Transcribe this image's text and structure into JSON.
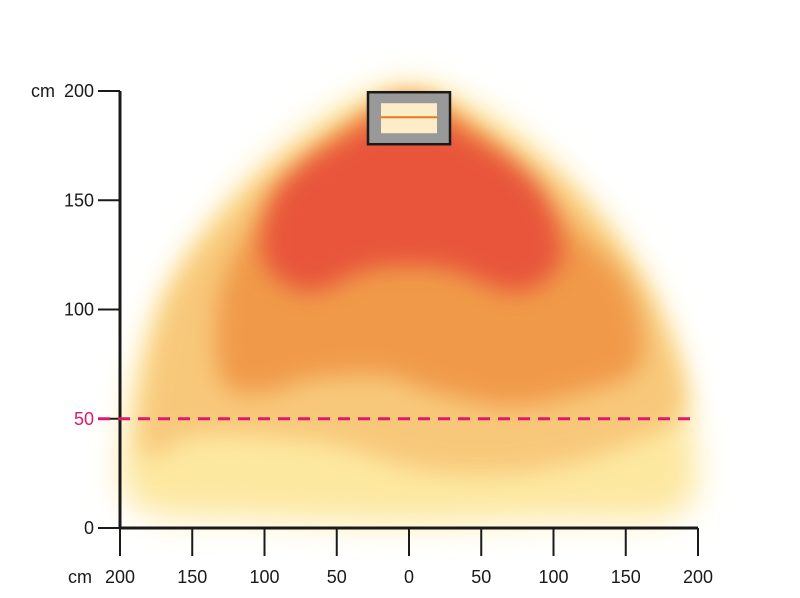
{
  "chart_data": {
    "type": "heatmap",
    "x_unit_label": "cm",
    "y_unit_label": "cm",
    "xlim": [
      -200,
      200
    ],
    "ylim": [
      0,
      200
    ],
    "x_ticks": [
      -200,
      -150,
      -100,
      -50,
      0,
      50,
      100,
      150,
      200
    ],
    "x_tick_labels": [
      "200",
      "150",
      "100",
      "50",
      "0",
      "50",
      "100",
      "150",
      "200"
    ],
    "y_ticks": [
      0,
      50,
      100,
      150,
      200
    ],
    "y_tick_labels": [
      "0",
      "50",
      "100",
      "150",
      "200"
    ],
    "reference_line": {
      "y": 50,
      "label": "50",
      "color": "#e0186c",
      "style": "dashed"
    },
    "heater": {
      "x": 0,
      "y": 188,
      "body_color": "#999999",
      "element_color": "#e87722"
    },
    "zones": [
      {
        "level": "low",
        "color": "#fde8a0",
        "points": [
          [
            -190,
            10
          ],
          [
            -195,
            50
          ],
          [
            -170,
            105
          ],
          [
            -130,
            145
          ],
          [
            -80,
            178
          ],
          [
            -30,
            198
          ],
          [
            0,
            203
          ],
          [
            30,
            198
          ],
          [
            80,
            178
          ],
          [
            130,
            145
          ],
          [
            170,
            105
          ],
          [
            195,
            50
          ],
          [
            190,
            8
          ],
          [
            100,
            4
          ],
          [
            0,
            2
          ],
          [
            -100,
            4
          ]
        ]
      },
      {
        "level": "medium",
        "color": "#f8c87a",
        "points": [
          [
            -185,
            35
          ],
          [
            -170,
            100
          ],
          [
            -120,
            148
          ],
          [
            -70,
            175
          ],
          [
            -25,
            193
          ],
          [
            0,
            197
          ],
          [
            25,
            193
          ],
          [
            70,
            175
          ],
          [
            120,
            148
          ],
          [
            170,
            100
          ],
          [
            190,
            55
          ],
          [
            150,
            38
          ],
          [
            100,
            28
          ],
          [
            50,
            25
          ],
          [
            0,
            28
          ],
          [
            -50,
            38
          ],
          [
            -100,
            42
          ],
          [
            -150,
            42
          ]
        ]
      },
      {
        "level": "high",
        "color": "#f09a4a",
        "points": [
          [
            -130,
            68
          ],
          [
            -130,
            110
          ],
          [
            -100,
            145
          ],
          [
            -55,
            175
          ],
          [
            -20,
            193
          ],
          [
            0,
            197
          ],
          [
            20,
            193
          ],
          [
            55,
            175
          ],
          [
            100,
            145
          ],
          [
            150,
            112
          ],
          [
            160,
            75
          ],
          [
            120,
            62
          ],
          [
            70,
            56
          ],
          [
            20,
            62
          ],
          [
            -20,
            70
          ],
          [
            -70,
            68
          ],
          [
            -100,
            62
          ]
        ]
      },
      {
        "level": "very-high",
        "color": "#e8553a",
        "points": [
          [
            -100,
            122
          ],
          [
            -95,
            150
          ],
          [
            -70,
            168
          ],
          [
            -40,
            180
          ],
          [
            -15,
            190
          ],
          [
            0,
            192
          ],
          [
            15,
            190
          ],
          [
            40,
            180
          ],
          [
            70,
            168
          ],
          [
            95,
            150
          ],
          [
            105,
            122
          ],
          [
            75,
            108
          ],
          [
            30,
            118
          ],
          [
            0,
            120
          ],
          [
            -30,
            118
          ],
          [
            -70,
            108
          ]
        ]
      }
    ]
  }
}
